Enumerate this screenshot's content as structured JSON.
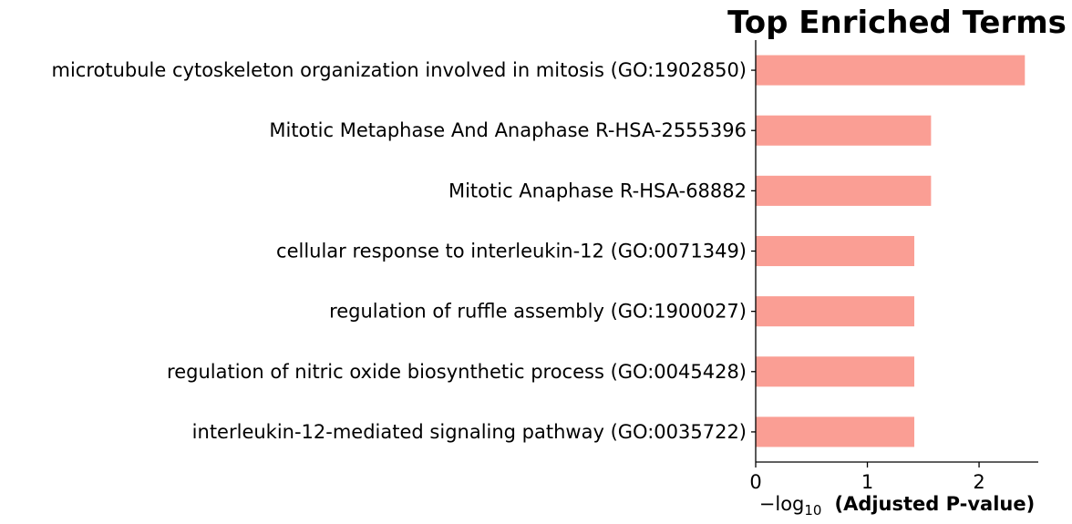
{
  "chart_data": {
    "type": "bar",
    "orientation": "horizontal",
    "title": "Top Enriched Terms",
    "xlabel_prefix": "−log",
    "xlabel_subscript": "10",
    "xlabel_main": "(Adjusted P-value)",
    "categories": [
      "microtubule cytoskeleton organization involved in mitosis (GO:1902850)",
      "Mitotic Metaphase And Anaphase R-HSA-2555396",
      "Mitotic Anaphase R-HSA-68882",
      "cellular response to interleukin-12 (GO:0071349)",
      "regulation of ruffle assembly (GO:1900027)",
      "regulation of nitric oxide biosynthetic process (GO:0045428)",
      "interleukin-12-mediated signaling pathway (GO:0035722)"
    ],
    "values": [
      2.41,
      1.57,
      1.57,
      1.42,
      1.42,
      1.42,
      1.42
    ],
    "xlim": [
      0,
      2.53
    ],
    "xticks": [
      0,
      1,
      2
    ],
    "bar_color": "#fa9e94",
    "grid": false
  }
}
